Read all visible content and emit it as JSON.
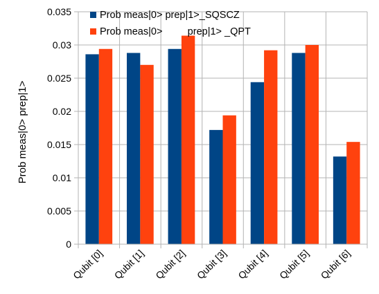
{
  "colors": {
    "series_1": "#004586",
    "series_2": "#ff420e",
    "grid": "#b3b3b3",
    "axis": "#b3b3b3"
  },
  "chart_data": {
    "type": "bar",
    "title": "",
    "xlabel": "",
    "ylabel": "Prob meas|0> prep|1>",
    "ylim": [
      0,
      0.035
    ],
    "yticks": [
      0,
      0.005,
      0.01,
      0.015,
      0.02,
      0.025,
      0.03,
      0.035
    ],
    "ytick_labels": [
      "0",
      "0.005",
      "0.01",
      "0.015",
      "0.02",
      "0.025",
      "0.03",
      "0.035"
    ],
    "grid": true,
    "legend_position": "top-left",
    "categories": [
      "Qubit [0]",
      "Qubit [1]",
      "Qubit [2]",
      "Qubit [3]",
      "Qubit [4]",
      "Qubit [5]",
      "Qubit [6]"
    ],
    "series": [
      {
        "name": "Prob meas|0> prep|1>_SQSCZ",
        "color": "#004586",
        "values": [
          0.0286,
          0.0288,
          0.0294,
          0.0172,
          0.0244,
          0.0288,
          0.0132
        ]
      },
      {
        "name": "Prob meas|0>         prep|1> _QPT",
        "color": "#ff420e",
        "values": [
          0.0294,
          0.027,
          0.0314,
          0.0194,
          0.0292,
          0.03,
          0.0154
        ]
      }
    ]
  }
}
